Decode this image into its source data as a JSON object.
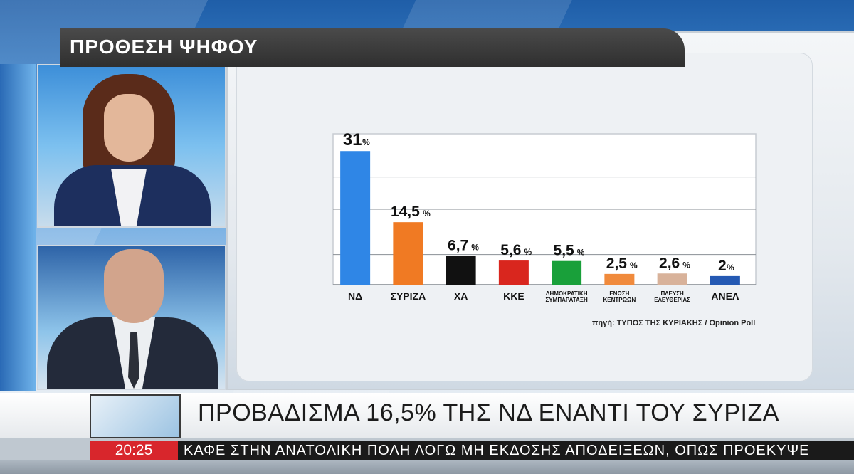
{
  "chart_data": {
    "type": "bar",
    "title": "ΠΡΟΘΕΣΗ ΨΗΦΟΥ",
    "categories": [
      "ΝΔ",
      "ΣΥΡΙΖΑ",
      "ΧΑ",
      "ΚΚΕ",
      "ΔΗΜΟΚΡΑΤΙΚΗ ΣΥΜΠΑΡΑΤΑΞΗ",
      "ΕΝΩΣΗ ΚΕΝΤΡΩΩΝ",
      "ΠΛΕΥΣΗ ΕΛΕΥΘΕΡΙΑΣ",
      "ΑΝΕΛ"
    ],
    "category_lines": [
      [
        "ΝΔ"
      ],
      [
        "ΣΥΡΙΖΑ"
      ],
      [
        "ΧΑ"
      ],
      [
        "ΚΚΕ"
      ],
      [
        "ΔΗΜΟΚΡΑΤΙΚΗ",
        "ΣΥΜΠΑΡΑΤΑΞΗ"
      ],
      [
        "ΕΝΩΣΗ",
        "ΚΕΝΤΡΩΩΝ"
      ],
      [
        "ΠΛΕΥΣΗ",
        "ΕΛΕΥΘΕΡΙΑΣ"
      ],
      [
        "ΑΝΕΛ"
      ]
    ],
    "values": [
      31,
      14.5,
      6.7,
      5.6,
      5.5,
      2.5,
      2.6,
      2
    ],
    "value_labels": [
      "31",
      "14,5",
      "6,7",
      "5,6",
      "5,5",
      "2,5",
      "2,6",
      "2"
    ],
    "unit": "%",
    "colors": [
      "#2f86e6",
      "#f07a23",
      "#111111",
      "#d9261e",
      "#19a03a",
      "#f08a3c",
      "#d8b29a",
      "#2459b3"
    ],
    "ylim": [
      0,
      35
    ],
    "grid": true,
    "source": "πηγή: ΤΥΠΟΣ ΤΗΣ ΚΥΡΙΑΚΗΣ / Opinion Poll"
  },
  "headline": "ΠΡΟΒΑΔΙΣΜΑ 16,5% ΤΗΣ ΝΔ ΕΝΑΝΤΙ ΤΟΥ ΣΥΡΙΖΑ",
  "ticker": {
    "time": "20:25",
    "text": "ΚΑΦΕ ΣΤΗΝ ΑΝΑΤΟΛΙΚΗ ΠΟΛΗ ΛΟΓΩ ΜΗ ΕΚΔΟΣΗΣ ΑΠΟΔΕΙΞΕΩΝ, ΟΠΩΣ ΠΡΟΕΚΥΨΕ"
  },
  "colors": {
    "ticker_time_bg": "#d8262c",
    "title_bar_bg": "#3a3a3a"
  }
}
